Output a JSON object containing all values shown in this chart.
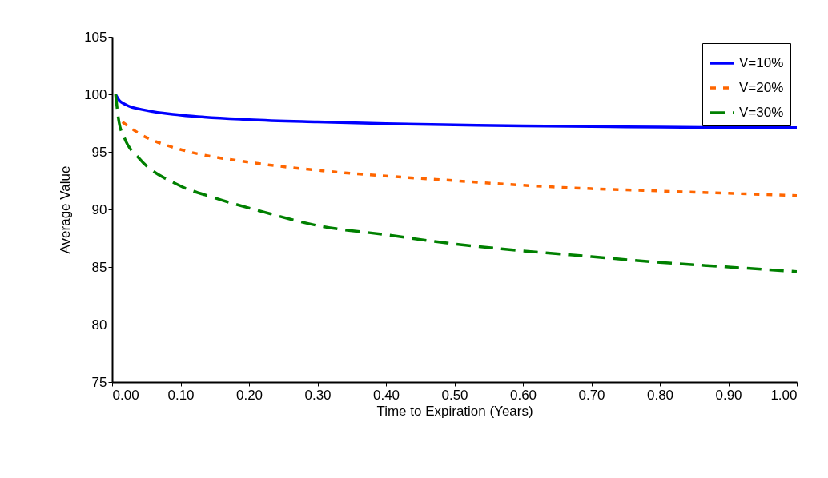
{
  "chart_data": {
    "type": "line",
    "xlabel": "Time to Expiration (Years)",
    "ylabel": "Average Value",
    "xlim": [
      0,
      1
    ],
    "ylim": [
      75,
      105
    ],
    "xticks": [
      {
        "value": 0,
        "label": "0.00"
      },
      {
        "value": 0.1,
        "label": "0.10"
      },
      {
        "value": 0.2,
        "label": "0.20"
      },
      {
        "value": 0.3,
        "label": "0.30"
      },
      {
        "value": 0.4,
        "label": "0.40"
      },
      {
        "value": 0.5,
        "label": "0.50"
      },
      {
        "value": 0.6,
        "label": "0.60"
      },
      {
        "value": 0.7,
        "label": "0.70"
      },
      {
        "value": 0.8,
        "label": "0.80"
      },
      {
        "value": 0.9,
        "label": "0.90"
      },
      {
        "value": 1,
        "label": "1.00"
      }
    ],
    "yticks": [
      75,
      80,
      85,
      90,
      95,
      100,
      105
    ],
    "grid": false,
    "legend": "top right",
    "series": [
      {
        "name": "V=10%",
        "color": "#0000ff",
        "line_style": "solid",
        "x": [
          0.005,
          0.01,
          0.02,
          0.05,
          0.1,
          0.2,
          0.3,
          0.4,
          0.5,
          0.6,
          0.7,
          0.8,
          0.9,
          1.0
        ],
        "values": [
          100,
          99.5,
          99.1,
          98.6,
          98.2,
          97.8,
          97.6,
          97.45,
          97.35,
          97.25,
          97.2,
          97.15,
          97.1,
          97.1
        ]
      },
      {
        "name": "V=20%",
        "color": "#ff6600",
        "line_style": "dotted",
        "x": [
          0.015,
          0.045,
          0.078,
          0.113,
          0.2,
          0.3,
          0.4,
          0.5,
          0.6,
          0.7,
          0.8,
          0.9,
          1.0
        ],
        "values": [
          97.6,
          96.4,
          95.6,
          95.0,
          94.1,
          93.4,
          92.9,
          92.5,
          92.1,
          91.8,
          91.6,
          91.4,
          91.2
        ]
      },
      {
        "name": "V=30%",
        "color": "#008000",
        "line_style": "dashed",
        "x": [
          0.005,
          0.01,
          0.018,
          0.04,
          0.094,
          0.15,
          0.22,
          0.3,
          0.4,
          0.5,
          0.6,
          0.7,
          0.8,
          0.9,
          1.0
        ],
        "values": [
          100,
          97.6,
          96.2,
          94.4,
          92.2,
          91.0,
          89.8,
          88.6,
          87.8,
          87.0,
          86.4,
          85.9,
          85.4,
          85.0,
          84.6
        ]
      }
    ]
  }
}
